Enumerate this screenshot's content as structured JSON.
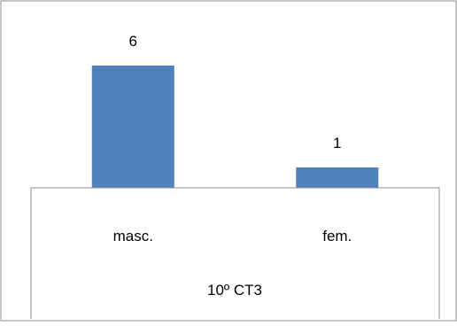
{
  "chart_data": {
    "type": "bar",
    "categories": [
      "masc.",
      "fem."
    ],
    "values": [
      6,
      1
    ],
    "data_labels": [
      "6",
      "1"
    ],
    "group_label": "10º CT3",
    "color": "#4F81BD",
    "ylim": [
      0,
      7
    ],
    "grid": false,
    "legend": "none"
  }
}
